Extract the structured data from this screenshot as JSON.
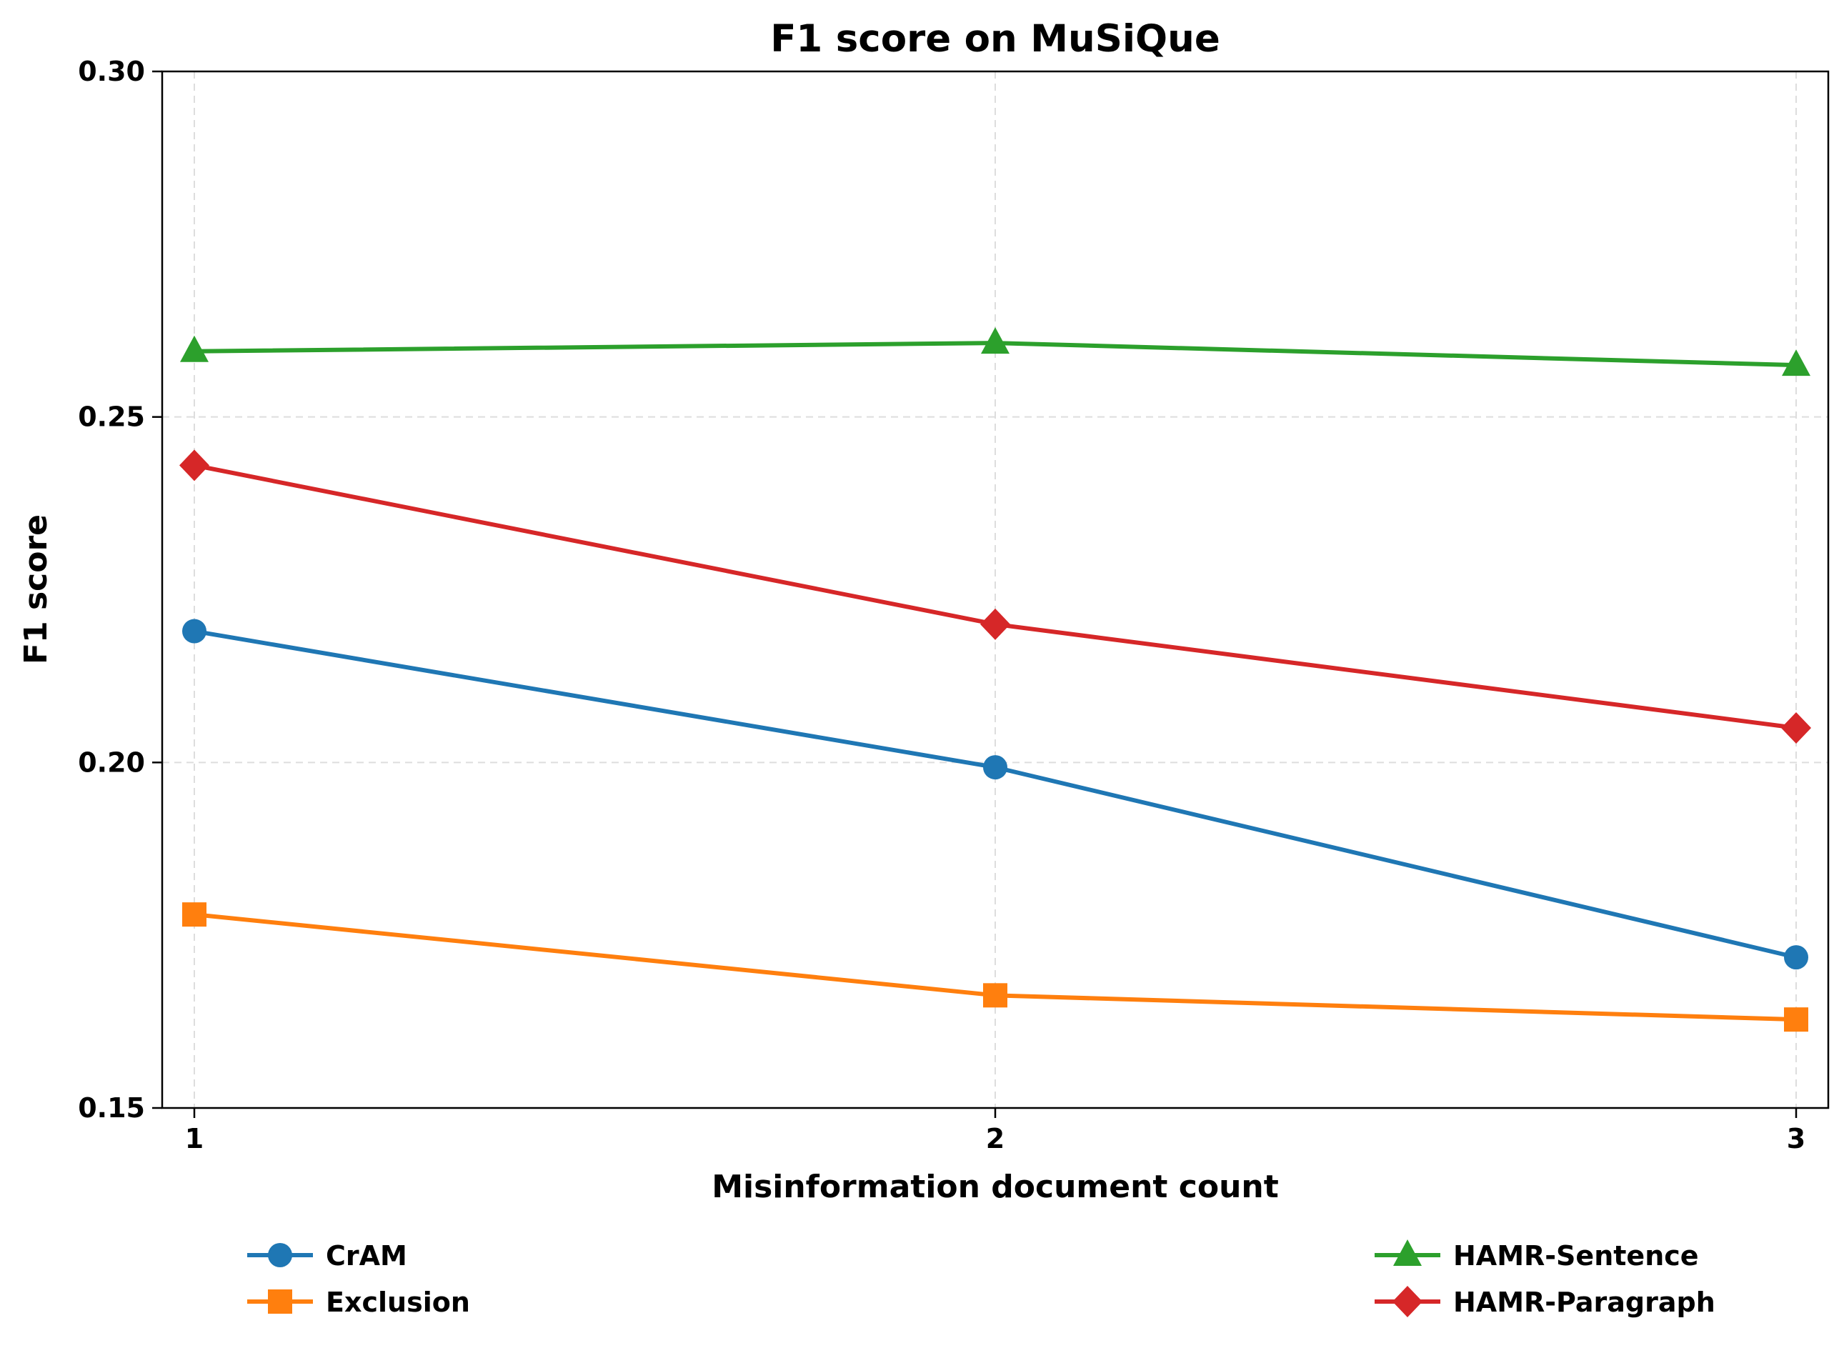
{
  "chart_data": {
    "type": "line",
    "title": "F1 score on MuSiQue",
    "xlabel": "Misinformation document count",
    "ylabel": "F1 score",
    "x": [
      1,
      2,
      3
    ],
    "x_ticks": [
      "1",
      "2",
      "3"
    ],
    "ylim": [
      0.15,
      0.3
    ],
    "y_ticks": [
      "0.15",
      "0.20",
      "0.25",
      "0.30"
    ],
    "grid": true,
    "legend_position": "bottom",
    "series": [
      {
        "name": "CrAM",
        "values": [
          0.219,
          0.1993,
          0.1718
        ],
        "color": "#1f77b4",
        "marker": "circle"
      },
      {
        "name": "Exclusion",
        "values": [
          0.178,
          0.1663,
          0.1628
        ],
        "color": "#ff7f0e",
        "marker": "square"
      },
      {
        "name": "HAMR-Sentence",
        "values": [
          0.2595,
          0.2607,
          0.2575
        ],
        "color": "#2ca02c",
        "marker": "triangle"
      },
      {
        "name": "HAMR-Paragraph",
        "values": [
          0.243,
          0.22,
          0.205
        ],
        "color": "#d62728",
        "marker": "diamond"
      }
    ]
  }
}
